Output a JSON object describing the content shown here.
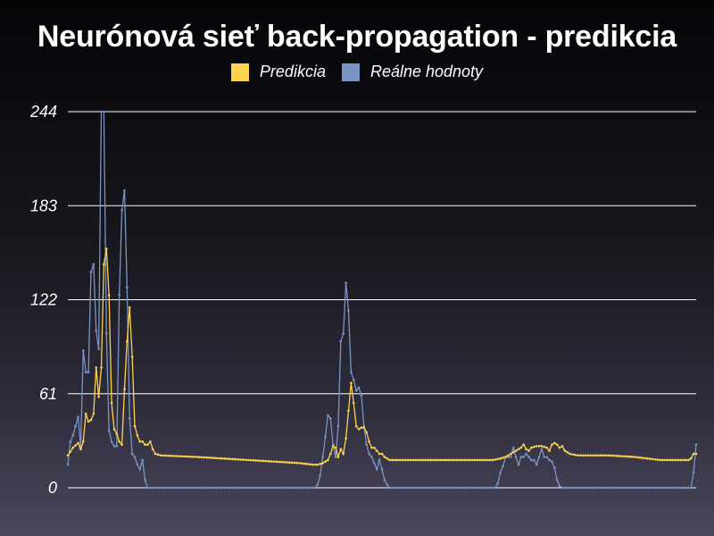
{
  "chart_data": {
    "type": "line",
    "title": "Neurónová sieť back-propagation - predikcia",
    "xlabel": "",
    "ylabel": "",
    "ylim": [
      0,
      244
    ],
    "yticks": [
      0,
      61,
      122,
      183,
      244
    ],
    "grid": true,
    "legend_position": "top-center",
    "n_points": 245,
    "series": [
      {
        "name": "Predikcia",
        "color": "#ffd24d",
        "keypoints": [
          [
            0,
            21
          ],
          [
            2,
            26
          ],
          [
            4,
            29
          ],
          [
            5,
            25
          ],
          [
            6,
            30
          ],
          [
            7,
            48
          ],
          [
            8,
            43
          ],
          [
            9,
            44
          ],
          [
            10,
            48
          ],
          [
            11,
            78
          ],
          [
            12,
            59
          ],
          [
            13,
            78
          ],
          [
            14,
            145
          ],
          [
            15,
            155
          ],
          [
            16,
            125
          ],
          [
            17,
            55
          ],
          [
            18,
            38
          ],
          [
            19,
            35
          ],
          [
            20,
            30
          ],
          [
            21,
            28
          ],
          [
            22,
            64
          ],
          [
            23,
            95
          ],
          [
            24,
            117
          ],
          [
            25,
            85
          ],
          [
            26,
            40
          ],
          [
            27,
            34
          ],
          [
            28,
            30
          ],
          [
            29,
            30
          ],
          [
            30,
            28
          ],
          [
            31,
            28
          ],
          [
            32,
            30
          ],
          [
            33,
            25
          ],
          [
            34,
            22
          ],
          [
            36,
            21
          ],
          [
            50,
            20
          ],
          [
            60,
            19
          ],
          [
            70,
            18
          ],
          [
            80,
            17
          ],
          [
            90,
            16
          ],
          [
            95,
            15
          ],
          [
            97,
            15
          ],
          [
            99,
            16
          ],
          [
            101,
            18
          ],
          [
            102,
            22
          ],
          [
            103,
            27
          ],
          [
            104,
            26
          ],
          [
            105,
            20
          ],
          [
            106,
            25
          ],
          [
            107,
            22
          ],
          [
            108,
            32
          ],
          [
            109,
            50
          ],
          [
            110,
            68
          ],
          [
            111,
            55
          ],
          [
            112,
            40
          ],
          [
            113,
            38
          ],
          [
            114,
            39
          ],
          [
            115,
            39
          ],
          [
            116,
            36
          ],
          [
            117,
            30
          ],
          [
            118,
            26
          ],
          [
            119,
            26
          ],
          [
            120,
            24
          ],
          [
            121,
            22
          ],
          [
            122,
            22
          ],
          [
            123,
            20
          ],
          [
            124,
            19
          ],
          [
            125,
            18
          ],
          [
            130,
            18
          ],
          [
            150,
            18
          ],
          [
            165,
            18
          ],
          [
            168,
            19
          ],
          [
            170,
            20
          ],
          [
            172,
            22
          ],
          [
            174,
            24
          ],
          [
            176,
            26
          ],
          [
            177,
            28
          ],
          [
            178,
            25
          ],
          [
            179,
            24
          ],
          [
            180,
            26
          ],
          [
            182,
            27
          ],
          [
            184,
            27
          ],
          [
            186,
            26
          ],
          [
            187,
            24
          ],
          [
            188,
            28
          ],
          [
            189,
            29
          ],
          [
            190,
            28
          ],
          [
            191,
            26
          ],
          [
            192,
            27
          ],
          [
            193,
            24
          ],
          [
            195,
            22
          ],
          [
            198,
            21
          ],
          [
            210,
            21
          ],
          [
            220,
            20
          ],
          [
            230,
            18
          ],
          [
            238,
            18
          ],
          [
            241,
            18
          ],
          [
            242,
            19
          ],
          [
            243,
            22
          ],
          [
            244,
            22
          ]
        ]
      },
      {
        "name": "Reálne hodnoty",
        "color": "#7b95c2",
        "keypoints": [
          [
            0,
            15
          ],
          [
            1,
            30
          ],
          [
            2,
            34
          ],
          [
            3,
            40
          ],
          [
            4,
            46
          ],
          [
            5,
            27
          ],
          [
            6,
            89
          ],
          [
            7,
            75
          ],
          [
            8,
            75
          ],
          [
            9,
            140
          ],
          [
            10,
            145
          ],
          [
            11,
            102
          ],
          [
            12,
            90
          ],
          [
            13,
            244
          ],
          [
            14,
            244
          ],
          [
            15,
            100
          ],
          [
            16,
            37
          ],
          [
            17,
            30
          ],
          [
            18,
            27
          ],
          [
            19,
            27
          ],
          [
            20,
            125
          ],
          [
            21,
            180
          ],
          [
            22,
            193
          ],
          [
            23,
            130
          ],
          [
            24,
            45
          ],
          [
            25,
            22
          ],
          [
            26,
            20
          ],
          [
            27,
            15
          ],
          [
            28,
            12
          ],
          [
            29,
            18
          ],
          [
            30,
            5
          ],
          [
            31,
            0
          ],
          [
            32,
            0
          ],
          [
            80,
            0
          ],
          [
            95,
            0
          ],
          [
            96,
            0
          ],
          [
            97,
            2
          ],
          [
            98,
            8
          ],
          [
            99,
            20
          ],
          [
            100,
            33
          ],
          [
            101,
            47
          ],
          [
            102,
            45
          ],
          [
            103,
            28
          ],
          [
            104,
            20
          ],
          [
            105,
            40
          ],
          [
            106,
            95
          ],
          [
            107,
            100
          ],
          [
            108,
            133
          ],
          [
            109,
            115
          ],
          [
            110,
            75
          ],
          [
            111,
            70
          ],
          [
            112,
            63
          ],
          [
            113,
            65
          ],
          [
            114,
            60
          ],
          [
            115,
            40
          ],
          [
            116,
            28
          ],
          [
            117,
            22
          ],
          [
            118,
            20
          ],
          [
            119,
            16
          ],
          [
            120,
            12
          ],
          [
            121,
            18
          ],
          [
            122,
            12
          ],
          [
            123,
            5
          ],
          [
            124,
            2
          ],
          [
            125,
            0
          ],
          [
            130,
            0
          ],
          [
            160,
            0
          ],
          [
            166,
            0
          ],
          [
            167,
            3
          ],
          [
            168,
            10
          ],
          [
            169,
            14
          ],
          [
            170,
            20
          ],
          [
            171,
            20
          ],
          [
            172,
            20
          ],
          [
            173,
            26
          ],
          [
            174,
            20
          ],
          [
            175,
            15
          ],
          [
            176,
            20
          ],
          [
            177,
            20
          ],
          [
            178,
            22
          ],
          [
            179,
            20
          ],
          [
            180,
            18
          ],
          [
            181,
            18
          ],
          [
            182,
            15
          ],
          [
            183,
            20
          ],
          [
            184,
            25
          ],
          [
            185,
            20
          ],
          [
            186,
            20
          ],
          [
            187,
            18
          ],
          [
            188,
            17
          ],
          [
            189,
            13
          ],
          [
            190,
            5
          ],
          [
            191,
            1
          ],
          [
            192,
            0
          ],
          [
            200,
            0
          ],
          [
            241,
            0
          ],
          [
            242,
            0
          ],
          [
            243,
            10
          ],
          [
            244,
            28
          ]
        ]
      }
    ]
  }
}
